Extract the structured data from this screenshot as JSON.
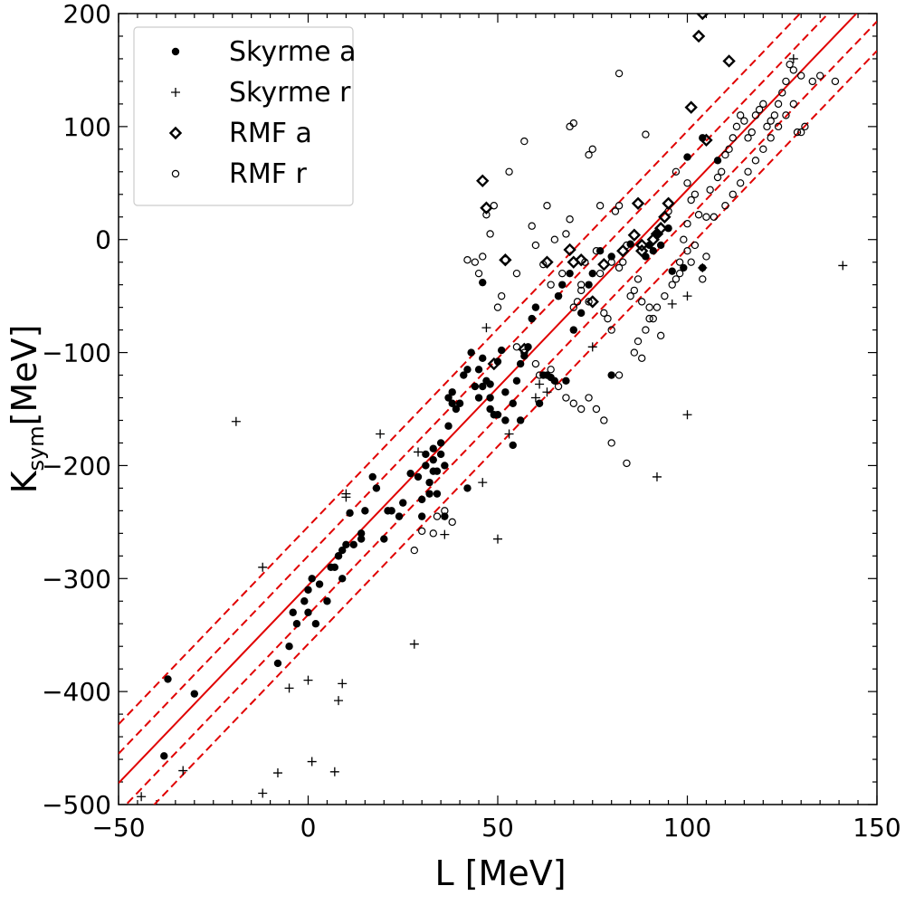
{
  "chart_data": {
    "type": "scatter",
    "title": "",
    "xlabel": "L [MeV]",
    "ylabel_main": "K",
    "ylabel_sub": "sym",
    "ylabel_unit": "[MeV]",
    "xlim": [
      -50,
      150
    ],
    "ylim": [
      -500,
      200
    ],
    "xticks": [
      -50,
      0,
      50,
      100,
      150
    ],
    "xtick_labels": [
      "−50",
      "0",
      "50",
      "100",
      "150"
    ],
    "yticks": [
      -500,
      -400,
      -300,
      -200,
      -100,
      0,
      100,
      200
    ],
    "ytick_labels": [
      "−500",
      "−400",
      "−300",
      "−200",
      "−100",
      "0",
      "100",
      "200"
    ],
    "legend_position": "top-left",
    "fit_lines": {
      "color": "#e00000",
      "slope": 3.5,
      "intercept": -306,
      "solid_offsets": [
        0
      ],
      "dashed_offsets": [
        -52,
        -26,
        26,
        52
      ]
    },
    "series": [
      {
        "name": "Skyrme a",
        "marker": "filled-circle",
        "x": [
          -37,
          -30,
          -38,
          11,
          3,
          9,
          12,
          18,
          17,
          15,
          25,
          27,
          29,
          30,
          30,
          31,
          31,
          32,
          32,
          33,
          33,
          34,
          34,
          35,
          35,
          36,
          36,
          37,
          37,
          38,
          39,
          40,
          41,
          42,
          43,
          44,
          45,
          45,
          46,
          47,
          48,
          48,
          49,
          50,
          51,
          52,
          54,
          55,
          56,
          57,
          58,
          59,
          60,
          62,
          63,
          64,
          65,
          66,
          67,
          69,
          70,
          72,
          74,
          75,
          77,
          80,
          85,
          90,
          92,
          95,
          99,
          104,
          108,
          7,
          6,
          8,
          8,
          9,
          10,
          1,
          0,
          -1,
          2,
          -4,
          -3,
          -8,
          -5,
          0,
          5,
          14,
          14,
          21,
          22,
          20,
          24,
          33,
          46,
          38,
          42,
          56,
          61,
          68,
          80,
          96,
          100,
          104,
          89,
          91,
          93,
          46,
          48,
          50,
          52,
          54
        ],
        "y": [
          -389,
          -402,
          -457,
          -242,
          -305,
          -300,
          -270,
          -220,
          -210,
          -240,
          -233,
          -207,
          -210,
          -230,
          -245,
          -190,
          -200,
          -215,
          -225,
          -185,
          -195,
          -205,
          -225,
          -180,
          -190,
          -200,
          -245,
          -140,
          -165,
          -135,
          -150,
          -145,
          -120,
          -115,
          -100,
          -130,
          -115,
          -140,
          -105,
          -125,
          -140,
          -150,
          -155,
          -108,
          -98,
          -135,
          -145,
          -125,
          -110,
          -103,
          -95,
          -70,
          -60,
          -120,
          -120,
          -122,
          -125,
          -50,
          -40,
          -30,
          -80,
          -65,
          -40,
          -30,
          -10,
          -15,
          -4,
          -5,
          5,
          10,
          -25,
          -25,
          70,
          -290,
          -290,
          -280,
          -280,
          -275,
          -270,
          -300,
          -310,
          -320,
          -340,
          -330,
          -340,
          -375,
          -360,
          -330,
          -320,
          -260,
          -265,
          -240,
          -240,
          -265,
          -245,
          -205,
          -38,
          -145,
          -220,
          -160,
          -145,
          -125,
          -120,
          -28,
          73,
          90,
          -15,
          -10,
          -5,
          -130,
          -128,
          -155,
          -160,
          -182
        ]
      },
      {
        "name": "Skyrme r",
        "marker": "plus",
        "x": [
          -19,
          -12,
          -44,
          -33,
          -12,
          -8,
          -5,
          0,
          1,
          7,
          8,
          9,
          10,
          10,
          19,
          28,
          29,
          36,
          46,
          47,
          50,
          53,
          60,
          61,
          63,
          75,
          92,
          96,
          100,
          100,
          104,
          128,
          141
        ],
        "y": [
          -161,
          -290,
          -493,
          -470,
          -490,
          -472,
          -397,
          -390,
          -462,
          -471,
          -408,
          -393,
          -225,
          -228,
          -172,
          -358,
          -188,
          -261,
          -215,
          -78,
          -265,
          -172,
          -140,
          -128,
          -135,
          -95,
          -210,
          -57,
          -155,
          -50,
          -25,
          160,
          -23
        ],
        "markers_start": 0
      },
      {
        "name": "RMF a",
        "marker": "open-diamond",
        "x": [
          46,
          47,
          49,
          52,
          57,
          63,
          69,
          70,
          72,
          75,
          78,
          83,
          86,
          87,
          88,
          88,
          91,
          92,
          93,
          94,
          95,
          101,
          103,
          105,
          111,
          104
        ],
        "y": [
          52,
          28,
          -110,
          -18,
          -97,
          -20,
          -9,
          -20,
          -18,
          -55,
          -22,
          -10,
          4,
          32,
          -5,
          -10,
          0,
          5,
          10,
          20,
          32,
          117,
          180,
          88,
          158,
          200
        ]
      },
      {
        "name": "RMF r",
        "marker": "open-circle",
        "x": [
          46,
          47,
          48,
          49,
          52,
          53,
          55,
          57,
          59,
          60,
          62,
          63,
          64,
          65,
          66,
          67,
          68,
          69,
          69,
          70,
          71,
          72,
          73,
          74,
          75,
          76,
          77,
          78,
          79,
          80,
          81,
          82,
          82,
          83,
          84,
          85,
          86,
          87,
          88,
          89,
          90,
          91,
          93,
          95,
          97,
          98,
          99,
          100,
          101,
          102,
          103,
          104,
          105,
          106,
          107,
          108,
          109,
          110,
          111,
          112,
          113,
          114,
          115,
          116,
          117,
          118,
          119,
          120,
          121,
          122,
          123,
          124,
          125,
          126,
          127,
          128,
          129,
          130,
          131,
          133,
          135,
          139,
          28,
          30,
          33,
          34,
          36,
          38,
          42,
          44,
          45,
          50,
          51,
          55,
          57,
          60,
          61,
          64,
          66,
          68,
          70,
          72,
          74,
          76,
          78,
          80,
          82,
          84,
          87,
          89,
          90,
          92,
          94,
          96,
          98,
          100,
          102,
          105,
          110,
          112,
          114,
          116,
          118,
          120,
          122,
          124,
          126,
          128,
          130,
          70,
          72,
          74,
          77,
          80,
          82,
          86,
          88,
          101,
          100,
          97
        ],
        "y": [
          -15,
          22,
          5,
          30,
          -18,
          60,
          -30,
          87,
          12,
          -5,
          -22,
          30,
          -40,
          0,
          -50,
          -30,
          5,
          18,
          100,
          103,
          -55,
          -45,
          -20,
          75,
          80,
          -10,
          30,
          -65,
          -70,
          -80,
          25,
          30,
          147,
          -20,
          -5,
          -50,
          -45,
          -35,
          -55,
          93,
          -60,
          -70,
          -85,
          25,
          60,
          -30,
          0,
          14,
          -20,
          40,
          22,
          -35,
          -15,
          44,
          20,
          55,
          60,
          75,
          80,
          90,
          100,
          110,
          105,
          90,
          95,
          110,
          115,
          120,
          100,
          105,
          110,
          120,
          130,
          140,
          155,
          150,
          95,
          145,
          100,
          140,
          145,
          140,
          -275,
          -258,
          -260,
          -245,
          -240,
          -250,
          -18,
          -20,
          -30,
          -60,
          -50,
          -95,
          -100,
          -110,
          -120,
          -115,
          -130,
          -140,
          -145,
          -150,
          -140,
          -150,
          -160,
          -180,
          -120,
          -198,
          -90,
          -80,
          -70,
          -60,
          -50,
          -40,
          -20,
          -10,
          -5,
          20,
          30,
          40,
          50,
          60,
          70,
          80,
          90,
          100,
          110,
          120,
          95,
          -60,
          -40,
          -55,
          -30,
          -20,
          -25,
          -100,
          -105,
          35,
          50,
          -35
        ]
      }
    ]
  }
}
